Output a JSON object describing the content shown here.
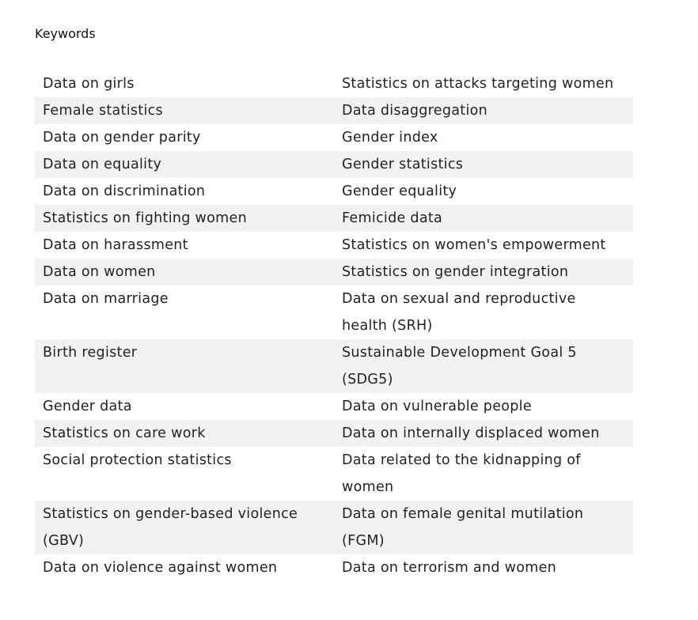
{
  "document": {
    "heading": "Keywords",
    "rows": [
      [
        "Data on girls",
        "Statistics on attacks targeting women"
      ],
      [
        "Female statistics",
        "Data disaggregation"
      ],
      [
        "Data on gender parity",
        "Gender index"
      ],
      [
        "Data on equality",
        "Gender statistics"
      ],
      [
        "Data on discrimination",
        "Gender equality"
      ],
      [
        "Statistics on fighting women",
        "Femicide data"
      ],
      [
        "Data on harassment",
        "Statistics on women's empowerment"
      ],
      [
        "Data on women",
        "Statistics on gender integration"
      ],
      [
        "Data on marriage",
        "Data on sexual and reproductive health (SRH)"
      ],
      [
        "Birth register",
        "Sustainable Development Goal 5 (SDG5)"
      ],
      [
        "Gender data",
        "Data on vulnerable people"
      ],
      [
        "Statistics on care work",
        "Data on internally displaced women"
      ],
      [
        "Social protection statistics",
        "Data related to the kidnapping of women"
      ],
      [
        "Statistics on gender-based violence (GBV)",
        "Data on female genital mutilation (FGM)"
      ],
      [
        "Data on violence against women",
        "Data on terrorism and women"
      ]
    ],
    "row_shading_color": "#f2f2f2"
  }
}
